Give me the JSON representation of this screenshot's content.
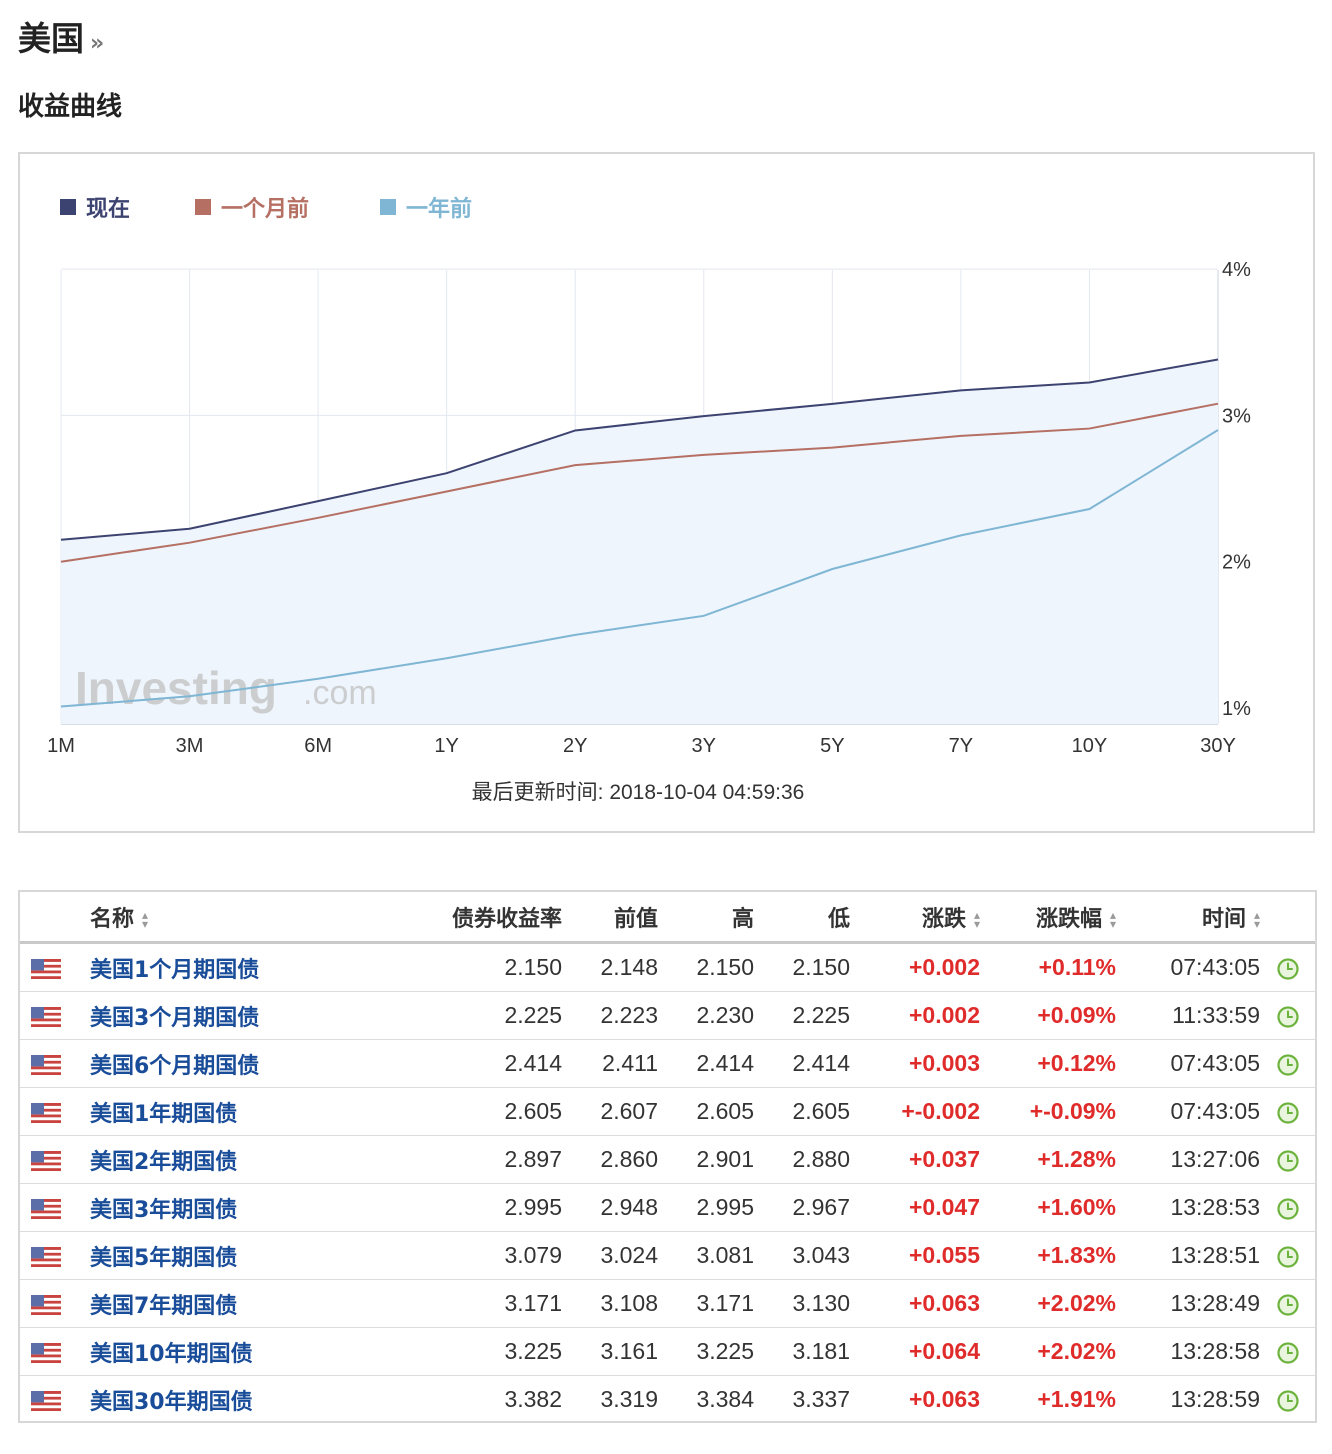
{
  "page": {
    "country_title": "美国",
    "breadcrumb_icon": "»",
    "section_title": "收益曲线"
  },
  "colors": {
    "now": "#3d4370",
    "month_ago": "#b56f63",
    "year_ago": "#7fb6d4",
    "up": "#e02b2b",
    "link": "#1a4d99"
  },
  "chart_data": {
    "type": "line",
    "title": "",
    "categories": [
      "1M",
      "3M",
      "6M",
      "1Y",
      "2Y",
      "3Y",
      "5Y",
      "7Y",
      "10Y",
      "30Y"
    ],
    "y_tick_labels": [
      "4%",
      "3%",
      "2%",
      "1%"
    ],
    "ylim": [
      0.9,
      4.0
    ],
    "series": [
      {
        "name": "现在",
        "color": "#3d4370",
        "values": [
          2.15,
          2.225,
          2.414,
          2.605,
          2.897,
          2.995,
          3.079,
          3.171,
          3.225,
          3.382
        ]
      },
      {
        "name": "一个月前",
        "color": "#b56f63",
        "values": [
          2.0,
          2.13,
          2.3,
          2.48,
          2.66,
          2.73,
          2.78,
          2.86,
          2.91,
          3.08
        ]
      },
      {
        "name": "一年前",
        "color": "#7fb6d4",
        "values": [
          1.01,
          1.08,
          1.2,
          1.34,
          1.5,
          1.63,
          1.95,
          2.18,
          2.36,
          2.9
        ]
      }
    ],
    "grid": true,
    "legend_position": "top-left",
    "watermark": "Investing.com",
    "update_label": "最后更新时间:",
    "update_time": "2018-10-04 04:59:36"
  },
  "table": {
    "headers": {
      "name": "名称",
      "yield": "债券收益率",
      "prev": "前值",
      "high": "高",
      "low": "低",
      "chg": "涨跌",
      "chg_pct": "涨跌幅",
      "time": "时间"
    },
    "rows": [
      {
        "name": "美国1个月期国债",
        "yield": "2.150",
        "prev": "2.148",
        "high": "2.150",
        "low": "2.150",
        "chg": "+0.002",
        "chg_pct": "+0.11%",
        "time": "07:43:05"
      },
      {
        "name": "美国3个月期国债",
        "yield": "2.225",
        "prev": "2.223",
        "high": "2.230",
        "low": "2.225",
        "chg": "+0.002",
        "chg_pct": "+0.09%",
        "time": "11:33:59"
      },
      {
        "name": "美国6个月期国债",
        "yield": "2.414",
        "prev": "2.411",
        "high": "2.414",
        "low": "2.414",
        "chg": "+0.003",
        "chg_pct": "+0.12%",
        "time": "07:43:05"
      },
      {
        "name": "美国1年期国债",
        "yield": "2.605",
        "prev": "2.607",
        "high": "2.605",
        "low": "2.605",
        "chg": "+-0.002",
        "chg_pct": "+-0.09%",
        "time": "07:43:05"
      },
      {
        "name": "美国2年期国债",
        "yield": "2.897",
        "prev": "2.860",
        "high": "2.901",
        "low": "2.880",
        "chg": "+0.037",
        "chg_pct": "+1.28%",
        "time": "13:27:06"
      },
      {
        "name": "美国3年期国债",
        "yield": "2.995",
        "prev": "2.948",
        "high": "2.995",
        "low": "2.967",
        "chg": "+0.047",
        "chg_pct": "+1.60%",
        "time": "13:28:53"
      },
      {
        "name": "美国5年期国债",
        "yield": "3.079",
        "prev": "3.024",
        "high": "3.081",
        "low": "3.043",
        "chg": "+0.055",
        "chg_pct": "+1.83%",
        "time": "13:28:51"
      },
      {
        "name": "美国7年期国债",
        "yield": "3.171",
        "prev": "3.108",
        "high": "3.171",
        "low": "3.130",
        "chg": "+0.063",
        "chg_pct": "+2.02%",
        "time": "13:28:49"
      },
      {
        "name": "美国10年期国债",
        "yield": "3.225",
        "prev": "3.161",
        "high": "3.225",
        "low": "3.181",
        "chg": "+0.064",
        "chg_pct": "+2.02%",
        "time": "13:28:58"
      },
      {
        "name": "美国30年期国债",
        "yield": "3.382",
        "prev": "3.319",
        "high": "3.384",
        "low": "3.337",
        "chg": "+0.063",
        "chg_pct": "+1.91%",
        "time": "13:28:59"
      }
    ]
  },
  "icons": {
    "flag": "us-flag-icon",
    "clock": "clock-icon",
    "sort": "sort-icon"
  }
}
